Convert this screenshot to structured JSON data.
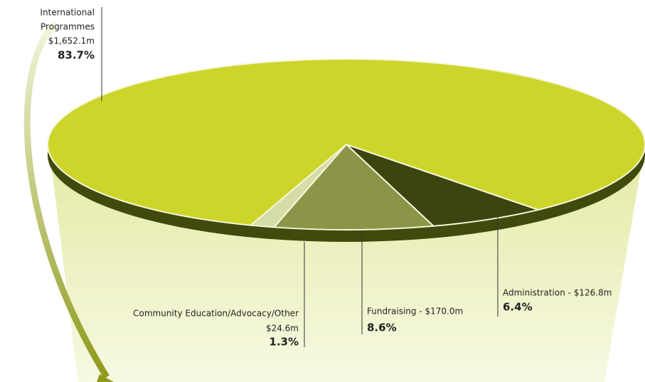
{
  "chart_data": {
    "type": "pie",
    "labels": [
      [
        "International",
        "Programmes",
        "$1,652.1m"
      ],
      [
        "Community Education/Advocacy/Other",
        "$24.6m"
      ],
      [
        "Fundraising - $170.0m"
      ],
      [
        "Administration - $126.8m"
      ]
    ],
    "values": [
      83.7,
      1.3,
      8.6,
      6.4
    ],
    "value_labels": [
      "83.7%",
      "1.3%",
      "8.6%",
      "6.4%"
    ],
    "colors": [
      "#cdd52a",
      "#e6ecb8",
      "#8c9448",
      "#3b4510"
    ]
  }
}
